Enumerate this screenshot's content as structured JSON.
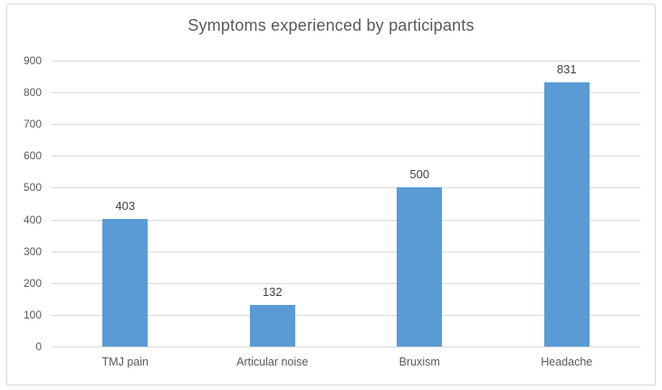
{
  "chart_data": {
    "type": "bar",
    "title": "Symptoms experienced by participants",
    "categories": [
      "TMJ pain",
      "Articular noise",
      "Bruxism",
      "Headache"
    ],
    "values": [
      403,
      132,
      500,
      831
    ],
    "xlabel": "",
    "ylabel": "",
    "ylim": [
      0,
      900
    ],
    "yticks": [
      0,
      100,
      200,
      300,
      400,
      500,
      600,
      700,
      800,
      900
    ],
    "grid": true,
    "legend": false,
    "data_labels_shown": true
  },
  "colors": {
    "bar_fill": "#5B9BD5",
    "gridline": "#D9D9D9",
    "frame_border": "#D9D9D9",
    "title_text": "#595959",
    "axis_text": "#595959",
    "data_label_text": "#404040",
    "background": "#FFFFFF"
  }
}
